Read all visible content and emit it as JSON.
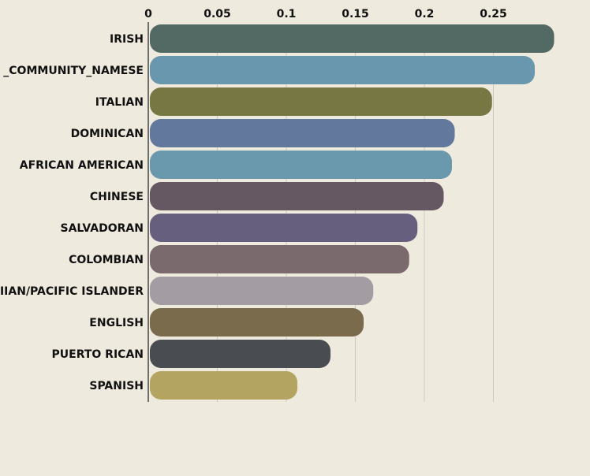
{
  "chart_data": {
    "type": "bar",
    "orientation": "horizontal",
    "categories": [
      "IRISH",
      "_COMMUNITY_NAMESE",
      "ITALIAN",
      "DOMINICAN",
      "AFRICAN AMERICAN",
      "CHINESE",
      "SALVADORAN",
      "COLOMBIAN",
      "IIAN/PACIFIC ISLANDER",
      "ENGLISH",
      "PUERTO RICAN",
      "SPANISH"
    ],
    "values": [
      0.294,
      0.28,
      0.249,
      0.222,
      0.22,
      0.214,
      0.195,
      0.189,
      0.163,
      0.156,
      0.132,
      0.108
    ],
    "colors": [
      "#526a63",
      "#6997ad",
      "#767743",
      "#62799d",
      "#6a99ad",
      "#665862",
      "#665f7e",
      "#7a6a6d",
      "#a49ca3",
      "#7a6b4c",
      "#494d51",
      "#b3a462"
    ],
    "x_ticks": [
      0,
      0.05,
      0.1,
      0.15,
      0.2,
      0.25
    ],
    "x_tick_labels": [
      "0",
      "0.05",
      "0.1",
      "0.15",
      "0.2",
      "0.25"
    ],
    "xlim": [
      0,
      0.3
    ],
    "x_axis_position": "top",
    "grid": true,
    "title": "",
    "xlabel": "",
    "ylabel": ""
  }
}
